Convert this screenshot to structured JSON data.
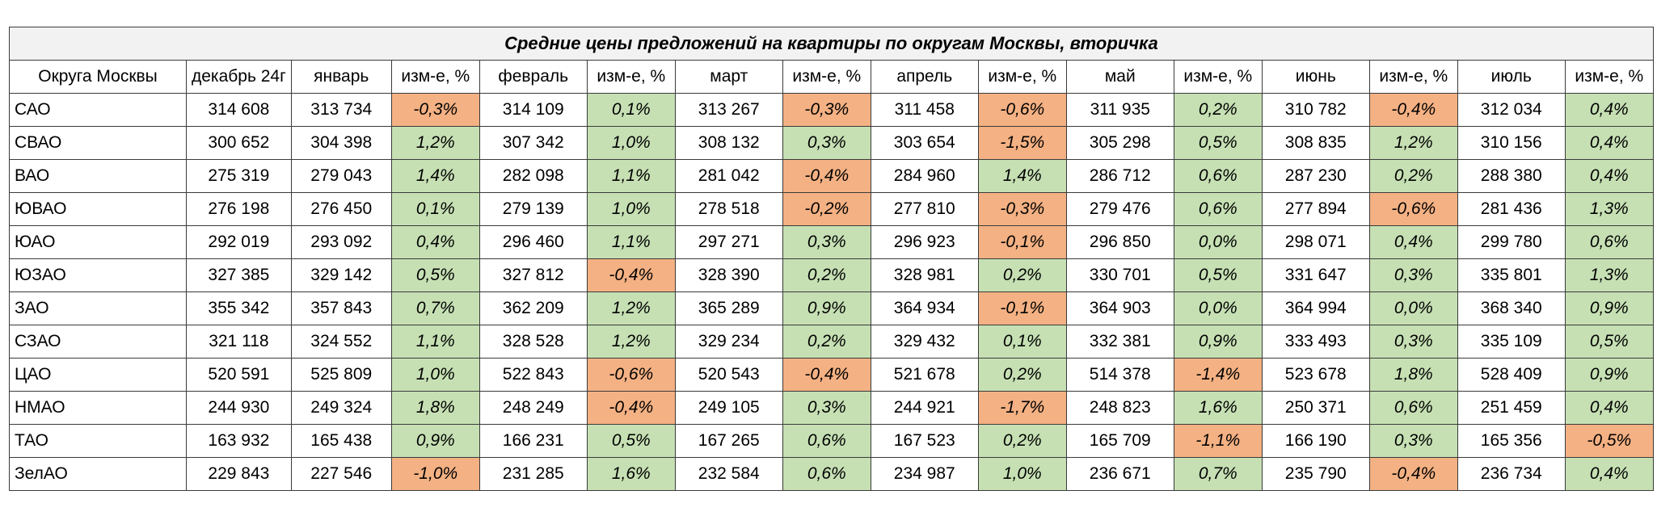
{
  "table": {
    "title": "Средние цены предложений на  квартиры по округам Москвы, вторичка",
    "headers": [
      "Округа Москвы",
      "декабрь 24г",
      "январь",
      "изм-е, %",
      "февраль",
      "изм-е, %",
      "март",
      "изм-е, %",
      "апрель",
      "изм-е, %",
      "май",
      "изм-е, %",
      "июнь",
      "изм-е, %",
      "июль",
      "изм-е, %"
    ],
    "rows": [
      [
        "САО",
        "314 608",
        "313 734",
        "-0,3%",
        "314 109",
        "0,1%",
        "313 267",
        "-0,3%",
        "311 458",
        "-0,6%",
        "311 935",
        "0,2%",
        "310 782",
        "-0,4%",
        "312 034",
        "0,4%"
      ],
      [
        "СВАО",
        "300 652",
        "304 398",
        "1,2%",
        "307 342",
        "1,0%",
        "308 132",
        "0,3%",
        "303 654",
        "-1,5%",
        "305 298",
        "0,5%",
        "308 835",
        "1,2%",
        "310 156",
        "0,4%"
      ],
      [
        "ВАО",
        "275 319",
        "279 043",
        "1,4%",
        "282 098",
        "1,1%",
        "281 042",
        "-0,4%",
        "284 960",
        "1,4%",
        "286 712",
        "0,6%",
        "287 230",
        "0,2%",
        "288 380",
        "0,4%"
      ],
      [
        "ЮВАО",
        "276 198",
        "276 450",
        "0,1%",
        "279 139",
        "1,0%",
        "278 518",
        "-0,2%",
        "277 810",
        "-0,3%",
        "279 476",
        "0,6%",
        "277 894",
        "-0,6%",
        "281 436",
        "1,3%"
      ],
      [
        "ЮАО",
        "292 019",
        "293 092",
        "0,4%",
        "296 460",
        "1,1%",
        "297 271",
        "0,3%",
        "296 923",
        "-0,1%",
        "296 850",
        "0,0%",
        "298 071",
        "0,4%",
        "299 780",
        "0,6%"
      ],
      [
        "ЮЗАО",
        "327 385",
        "329 142",
        "0,5%",
        "327 812",
        "-0,4%",
        "328 390",
        "0,2%",
        "328 981",
        "0,2%",
        "330 701",
        "0,5%",
        "331 647",
        "0,3%",
        "335 801",
        "1,3%"
      ],
      [
        "ЗАО",
        "355 342",
        "357 843",
        "0,7%",
        "362 209",
        "1,2%",
        "365 289",
        "0,9%",
        "364 934",
        "-0,1%",
        "364 903",
        "0,0%",
        "364 994",
        "0,0%",
        "368 340",
        "0,9%"
      ],
      [
        "СЗАО",
        "321 118",
        "324 552",
        "1,1%",
        "328 528",
        "1,2%",
        "329 234",
        "0,2%",
        "329 432",
        "0,1%",
        "332 381",
        "0,9%",
        "333 493",
        "0,3%",
        "335 109",
        "0,5%"
      ],
      [
        "ЦАО",
        "520 591",
        "525 809",
        "1,0%",
        "522 843",
        "-0,6%",
        "520 543",
        "-0,4%",
        "521 678",
        "0,2%",
        "514 378",
        "-1,4%",
        "523 678",
        "1,8%",
        "528 409",
        "0,9%"
      ],
      [
        "НМАО",
        "244 930",
        "249 324",
        "1,8%",
        "248 249",
        "-0,4%",
        "249 105",
        "0,3%",
        "244 921",
        "-1,7%",
        "248 823",
        "1,6%",
        "250 371",
        "0,6%",
        "251 459",
        "0,4%"
      ],
      [
        "ТАО",
        "163 932",
        "165 438",
        "0,9%",
        "166 231",
        "0,5%",
        "167 265",
        "0,6%",
        "167 523",
        "0,2%",
        "165 709",
        "-1,1%",
        "166 190",
        "0,3%",
        "165 356",
        "-0,5%"
      ],
      [
        "ЗелАО",
        "229 843",
        "227 546",
        "-1,0%",
        "231 285",
        "1,6%",
        "232 584",
        "0,6%",
        "234 987",
        "1,0%",
        "236 671",
        "0,7%",
        "235 790",
        "-0,4%",
        "236 734",
        "0,4%"
      ]
    ],
    "colors": {
      "positive": "#c6e0b4",
      "negative": "#f4b183",
      "title_bg": "#f2f2f2"
    }
  }
}
